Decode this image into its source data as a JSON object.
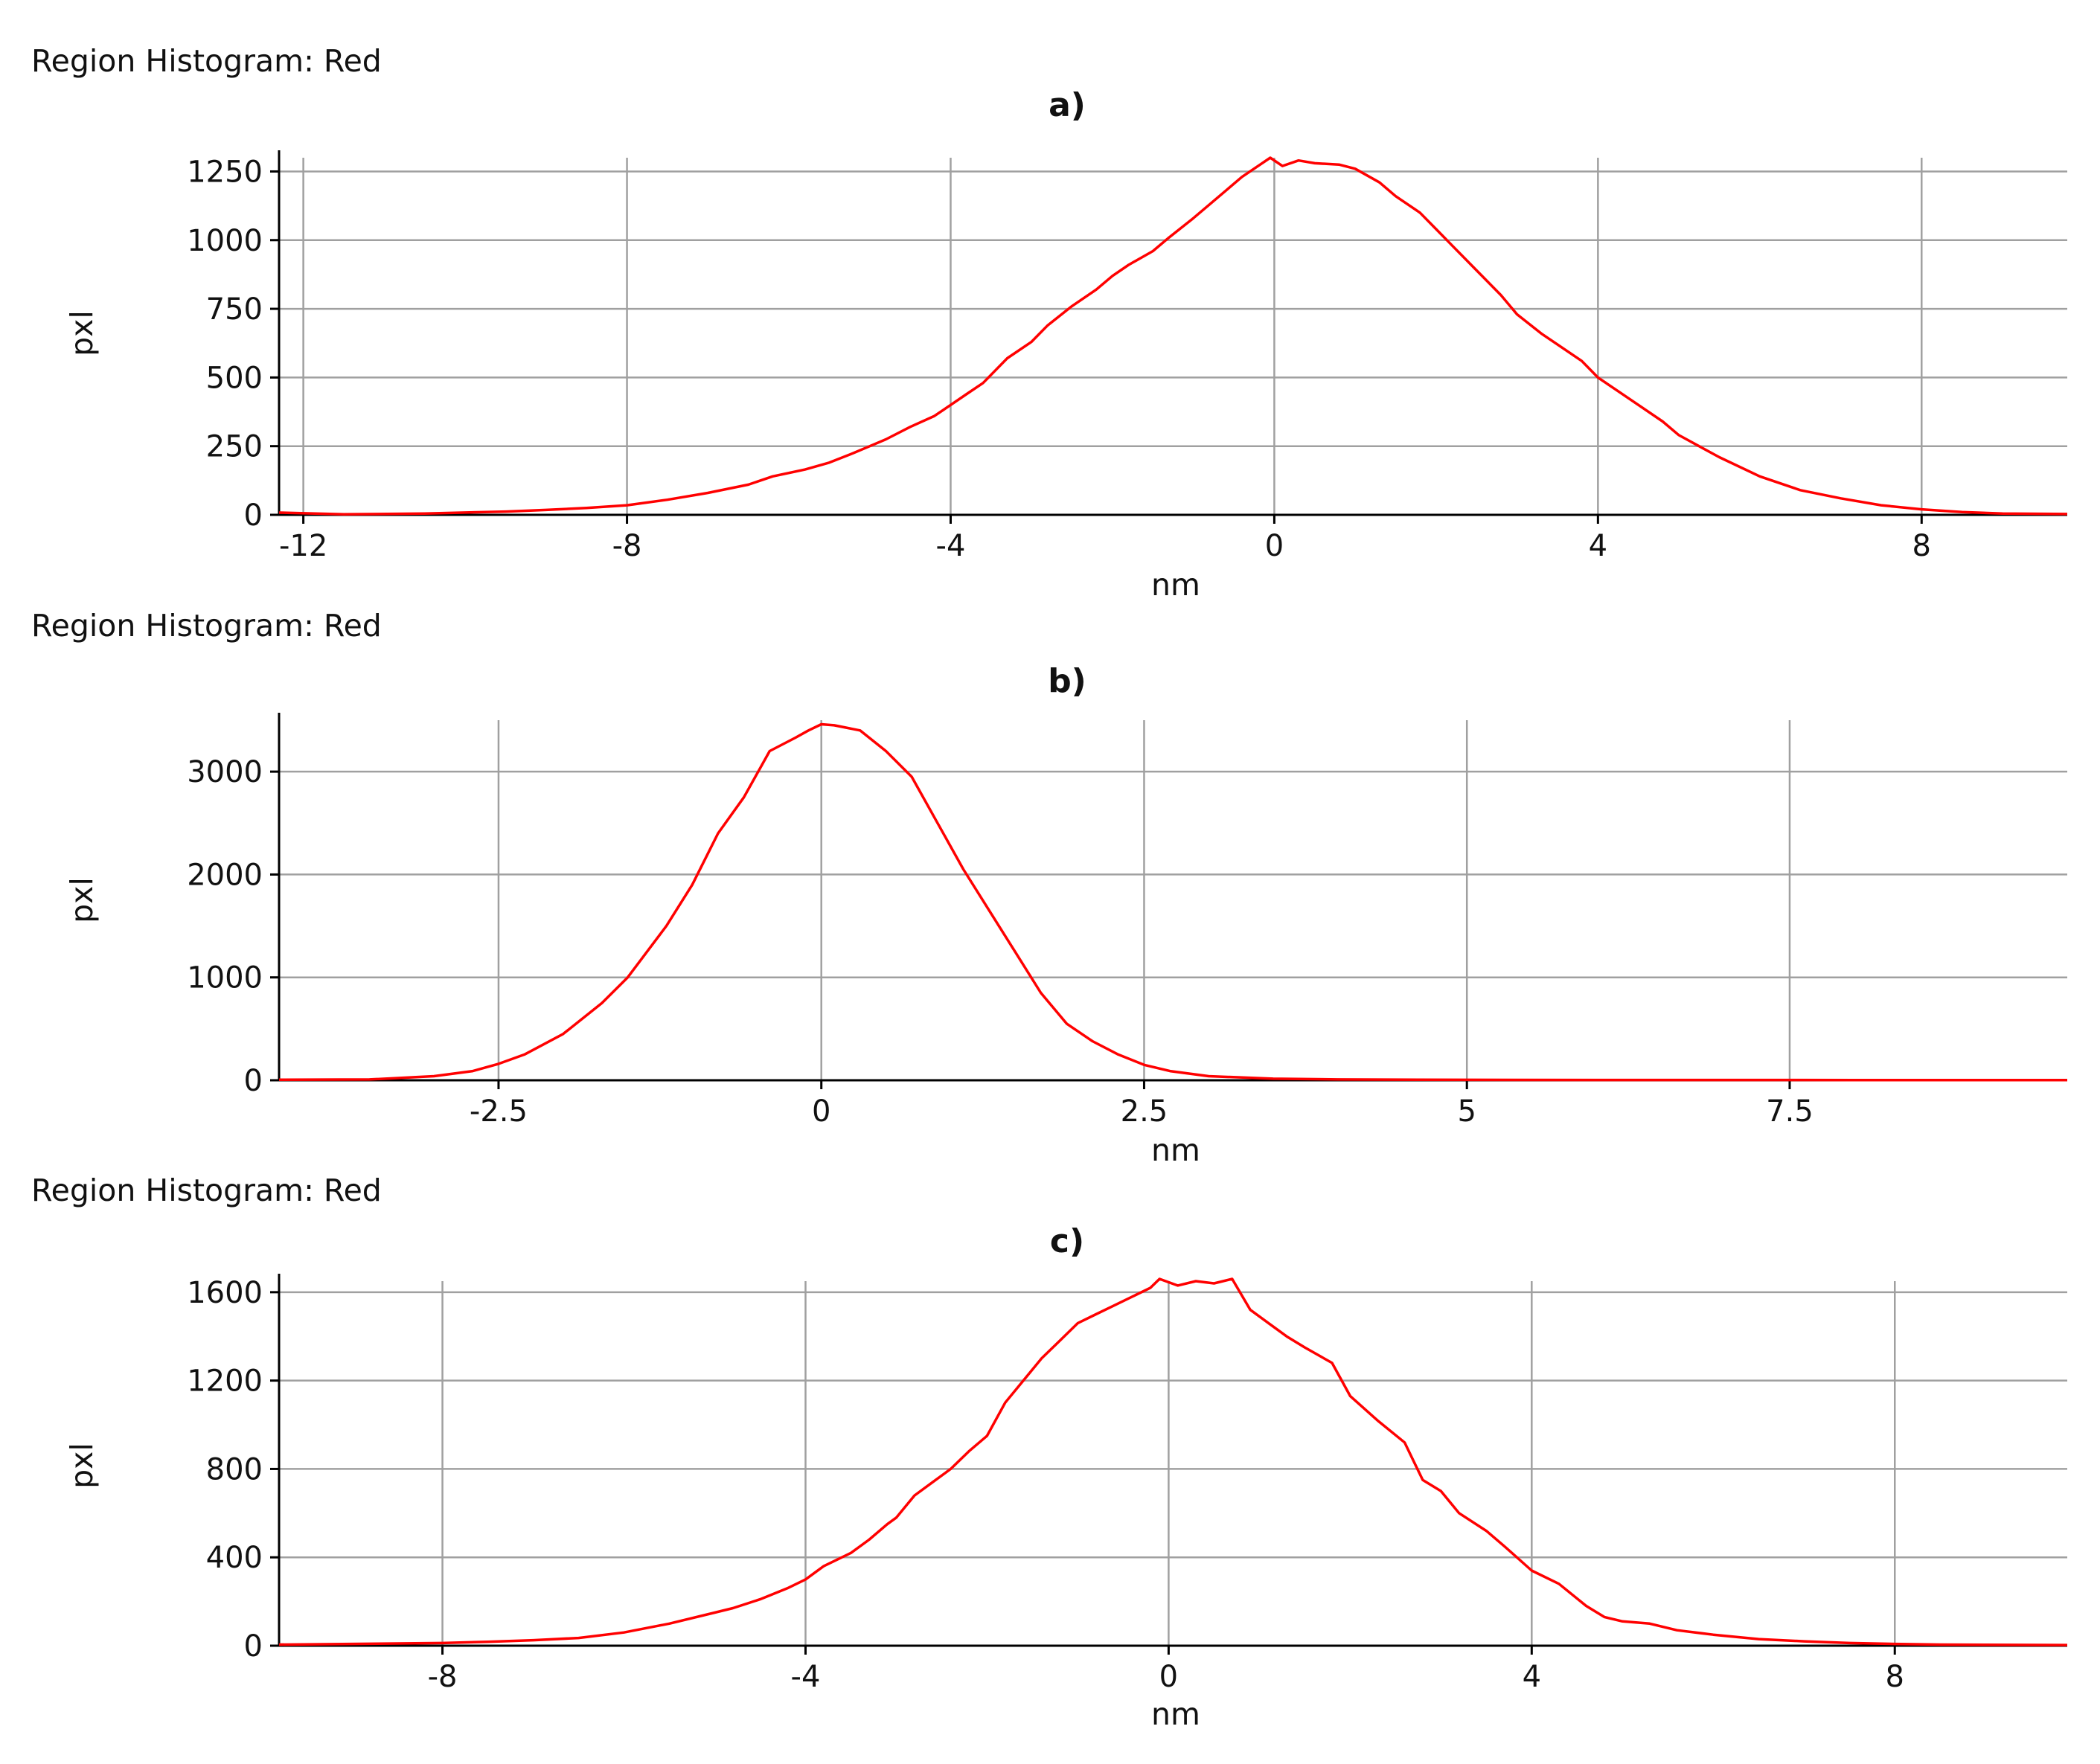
{
  "colors": {
    "series": "#ff0000",
    "grid": "#a0a0a0",
    "axis": "#000000",
    "background": "#ffffff"
  },
  "chart_data": [
    {
      "panel": "a",
      "type": "line",
      "header": "Region Histogram: Red",
      "title": "a)",
      "xlabel": "nm",
      "ylabel": "pxl",
      "xlim": [
        -12.3,
        9.8
      ],
      "ylim": [
        0,
        1300
      ],
      "xticks": [
        -12,
        -8,
        -4,
        0,
        4,
        8
      ],
      "xtick_labels": [
        "-12",
        "-8",
        "-4",
        "0",
        "4",
        "8"
      ],
      "yticks": [
        0,
        250,
        500,
        750,
        1000,
        1250
      ],
      "ytick_labels": [
        "0",
        "250",
        "500",
        "750",
        "1000",
        "1250"
      ],
      "grid": true,
      "series": [
        {
          "x": [
            -12.3,
            -11.5,
            -10.5,
            -9.5,
            -9.0,
            -8.5,
            -8.0,
            -7.5,
            -7.0,
            -6.5,
            -6.2,
            -5.8,
            -5.5,
            -5.2,
            -5.0,
            -4.8,
            -4.5,
            -4.2,
            -4.0,
            -3.8,
            -3.6,
            -3.5,
            -3.3,
            -3.0,
            -2.8,
            -2.5,
            -2.2,
            -2.0,
            -1.8,
            -1.5,
            -1.3,
            -1.0,
            -0.8,
            -0.6,
            -0.4,
            -0.2,
            -0.05,
            0.1,
            0.3,
            0.5,
            0.8,
            1.0,
            1.3,
            1.5,
            1.8,
            2.0,
            2.2,
            2.5,
            2.8,
            3.0,
            3.3,
            3.5,
            3.8,
            4.0,
            4.2,
            4.5,
            4.8,
            5.0,
            5.5,
            6.0,
            6.5,
            7.0,
            7.5,
            8.0,
            8.5,
            9.0,
            9.8
          ],
          "y": [
            8,
            2,
            5,
            12,
            18,
            25,
            35,
            55,
            80,
            110,
            140,
            165,
            190,
            225,
            250,
            275,
            320,
            360,
            400,
            440,
            480,
            510,
            570,
            630,
            690,
            760,
            820,
            870,
            910,
            960,
            1010,
            1080,
            1130,
            1180,
            1230,
            1270,
            1300,
            1270,
            1290,
            1280,
            1275,
            1260,
            1210,
            1160,
            1100,
            1040,
            980,
            890,
            800,
            730,
            660,
            620,
            560,
            500,
            460,
            400,
            340,
            290,
            210,
            140,
            90,
            60,
            35,
            20,
            10,
            5,
            3
          ]
        }
      ]
    },
    {
      "panel": "b",
      "type": "line",
      "header": "Region Histogram: Red",
      "title": "b)",
      "xlabel": "nm",
      "ylabel": "pxl",
      "xlim": [
        -4.2,
        9.65
      ],
      "ylim": [
        0,
        3500
      ],
      "xticks": [
        -2.5,
        0,
        2.5,
        5,
        7.5
      ],
      "xtick_labels": [
        "-2.5",
        "0",
        "2.5",
        "5",
        "7.5"
      ],
      "yticks": [
        0,
        1000,
        2000,
        3000
      ],
      "ytick_labels": [
        "0",
        "1000",
        "2000",
        "3000"
      ],
      "grid": true,
      "series": [
        {
          "x": [
            -4.2,
            -3.5,
            -3.0,
            -2.7,
            -2.5,
            -2.3,
            -2.0,
            -1.7,
            -1.5,
            -1.2,
            -1.0,
            -0.8,
            -0.6,
            -0.4,
            -0.2,
            -0.1,
            0.0,
            0.1,
            0.3,
            0.5,
            0.7,
            0.9,
            1.1,
            1.3,
            1.5,
            1.7,
            1.9,
            2.1,
            2.3,
            2.5,
            2.7,
            3.0,
            3.5,
            4.0,
            5.0,
            6.0,
            7.0,
            8.0,
            9.65
          ],
          "y": [
            5,
            8,
            40,
            90,
            160,
            250,
            450,
            750,
            1000,
            1500,
            1900,
            2400,
            2750,
            3200,
            3330,
            3400,
            3460,
            3450,
            3400,
            3200,
            2950,
            2500,
            2050,
            1650,
            1250,
            850,
            550,
            380,
            250,
            150,
            90,
            40,
            15,
            8,
            4,
            3,
            3,
            2,
            2
          ]
        }
      ]
    },
    {
      "panel": "c",
      "type": "line",
      "header": "Region Histogram: Red",
      "title": "c)",
      "xlabel": "nm",
      "ylabel": "pxl",
      "xlim": [
        -9.8,
        9.9
      ],
      "ylim": [
        0,
        1650
      ],
      "xticks": [
        -8,
        -4,
        0,
        4,
        8
      ],
      "xtick_labels": [
        "-8",
        "-4",
        "0",
        "4",
        "8"
      ],
      "yticks": [
        0,
        400,
        800,
        1200,
        1600
      ],
      "ytick_labels": [
        "0",
        "400",
        "800",
        "1200",
        "1600"
      ],
      "grid": true,
      "series": [
        {
          "x": [
            -9.8,
            -9.0,
            -8.0,
            -7.5,
            -7.0,
            -6.5,
            -6.0,
            -5.5,
            -5.0,
            -4.8,
            -4.5,
            -4.2,
            -4.0,
            -3.8,
            -3.5,
            -3.3,
            -3.1,
            -3.0,
            -2.8,
            -2.6,
            -2.4,
            -2.2,
            -2.0,
            -1.8,
            -1.6,
            -1.4,
            -1.2,
            -1.0,
            -0.8,
            -0.6,
            -0.4,
            -0.2,
            -0.1,
            0.1,
            0.3,
            0.5,
            0.7,
            0.9,
            1.1,
            1.3,
            1.5,
            1.8,
            2.0,
            2.3,
            2.6,
            2.8,
            3.0,
            3.2,
            3.5,
            3.7,
            4.0,
            4.3,
            4.6,
            4.8,
            5.0,
            5.3,
            5.6,
            6.0,
            6.5,
            7.0,
            7.5,
            8.0,
            8.5,
            9.0,
            9.9
          ],
          "y": [
            5,
            8,
            12,
            18,
            25,
            35,
            60,
            100,
            150,
            170,
            210,
            260,
            300,
            360,
            420,
            480,
            550,
            580,
            680,
            740,
            800,
            880,
            950,
            1100,
            1200,
            1300,
            1380,
            1460,
            1500,
            1540,
            1580,
            1620,
            1660,
            1630,
            1650,
            1640,
            1660,
            1520,
            1460,
            1400,
            1350,
            1280,
            1130,
            1020,
            920,
            750,
            700,
            600,
            520,
            450,
            340,
            280,
            180,
            130,
            110,
            100,
            70,
            50,
            30,
            20,
            12,
            8,
            5,
            4,
            3
          ]
        }
      ]
    }
  ]
}
